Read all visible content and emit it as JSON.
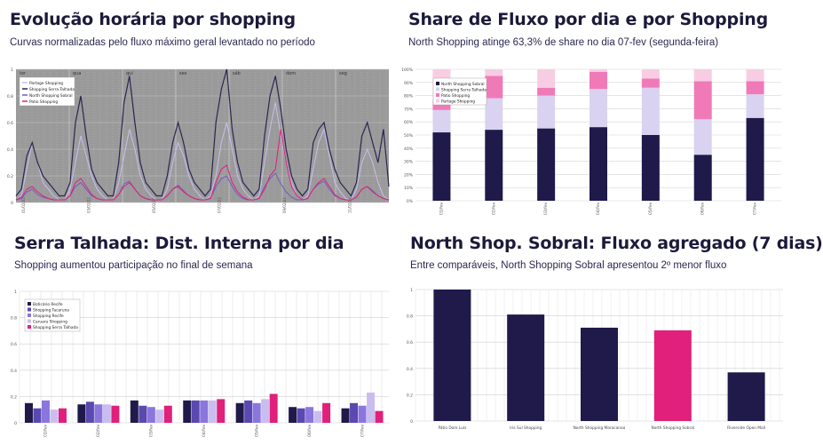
{
  "colors": {
    "navy": "#1f1a4a",
    "lavender": "#d9d2f0",
    "pink": "#f07ab8",
    "lightpink": "#f8cde3",
    "magenta": "#e0207a",
    "purple": "#5a49b0",
    "medpurple": "#8a76dd",
    "periwinkle": "#b9aef0"
  },
  "panels": [
    {
      "title": "Evolução horária por shopping",
      "subtitle": "Curvas normalizadas pelo fluxo máximo geral levantado no período"
    },
    {
      "title": "Share de Fluxo por dia e por Shopping",
      "subtitle": "North Shopping atinge 63,3% de share no dia 07-fev (segunda-feira)"
    },
    {
      "title": "Serra Talhada: Dist. Interna por dia",
      "subtitle": "Shopping aumentou participação no final de semana"
    },
    {
      "title": "North Shop. Sobral: Fluxo agregado (7 dias)",
      "subtitle": "Entre comparáveis, North Shopping Sobral apresentou 2º menor fluxo"
    }
  ],
  "chart_data": [
    {
      "type": "line",
      "title": "Evolução horária por shopping",
      "ylim": [
        0,
        1
      ],
      "yticks": [
        "0",
        "0.2",
        "0.4",
        "0.6",
        "0.8",
        "1"
      ],
      "day_labels": [
        "ter",
        "qua",
        "qui",
        "sex",
        "sáb",
        "dom",
        "seg"
      ],
      "x_ticks": [
        "01/02/22",
        "03/02/22",
        "05/02/22",
        "07/02/22",
        "09/02/22",
        "11/02/22"
      ],
      "legend": [
        "Partage Shopping",
        "Shopping Serra Talhada",
        "North Shopping Sobral",
        "Patio Shopping"
      ],
      "series": [
        {
          "name": "Partage Shopping",
          "color": "#c9bdf0",
          "values": [
            0.02,
            0.05,
            0.25,
            0.45,
            0.3,
            0.15,
            0.1,
            0.05,
            0.02,
            0.02,
            0.1,
            0.3,
            0.5,
            0.35,
            0.2,
            0.1,
            0.05,
            0.02,
            0.02,
            0.15,
            0.35,
            0.55,
            0.4,
            0.2,
            0.1,
            0.05,
            0.02,
            0.02,
            0.1,
            0.3,
            0.45,
            0.35,
            0.2,
            0.1,
            0.05,
            0.02,
            0.05,
            0.2,
            0.45,
            0.6,
            0.4,
            0.2,
            0.1,
            0.05,
            0.02,
            0.05,
            0.3,
            0.55,
            0.75,
            0.5,
            0.3,
            0.15,
            0.05,
            0.02,
            0.05,
            0.25,
            0.45,
            0.55,
            0.35,
            0.15,
            0.08,
            0.03,
            0.02,
            0.1,
            0.3,
            0.4,
            0.3,
            0.15,
            0.05,
            0.02
          ]
        },
        {
          "name": "Shopping Serra Talhada",
          "color": "#2a2650",
          "values": [
            0.05,
            0.1,
            0.35,
            0.45,
            0.3,
            0.2,
            0.15,
            0.1,
            0.05,
            0.05,
            0.15,
            0.6,
            0.8,
            0.5,
            0.25,
            0.15,
            0.1,
            0.05,
            0.05,
            0.3,
            0.75,
            0.95,
            0.6,
            0.3,
            0.15,
            0.1,
            0.05,
            0.05,
            0.2,
            0.45,
            0.6,
            0.45,
            0.25,
            0.15,
            0.1,
            0.05,
            0.1,
            0.6,
            0.85,
            1.0,
            0.55,
            0.3,
            0.15,
            0.1,
            0.05,
            0.1,
            0.5,
            0.8,
            0.95,
            0.7,
            0.4,
            0.2,
            0.1,
            0.05,
            0.1,
            0.45,
            0.55,
            0.6,
            0.4,
            0.25,
            0.15,
            0.1,
            0.05,
            0.15,
            0.5,
            0.6,
            0.45,
            0.3,
            0.55,
            0.12
          ]
        },
        {
          "name": "North Shopping Sobral",
          "color": "#6e5dc4",
          "values": [
            0.02,
            0.03,
            0.08,
            0.1,
            0.06,
            0.04,
            0.03,
            0.02,
            0.02,
            0.02,
            0.05,
            0.12,
            0.15,
            0.1,
            0.05,
            0.03,
            0.02,
            0.02,
            0.02,
            0.06,
            0.14,
            0.16,
            0.1,
            0.05,
            0.03,
            0.02,
            0.02,
            0.02,
            0.05,
            0.1,
            0.13,
            0.09,
            0.05,
            0.03,
            0.02,
            0.02,
            0.03,
            0.12,
            0.18,
            0.2,
            0.12,
            0.06,
            0.03,
            0.02,
            0.02,
            0.03,
            0.12,
            0.18,
            0.22,
            0.14,
            0.08,
            0.04,
            0.02,
            0.02,
            0.03,
            0.1,
            0.14,
            0.16,
            0.1,
            0.05,
            0.03,
            0.02,
            0.02,
            0.04,
            0.1,
            0.12,
            0.09,
            0.05,
            0.03,
            0.02
          ]
        },
        {
          "name": "Patio Shopping",
          "color": "#e0207a",
          "values": [
            0.02,
            0.04,
            0.1,
            0.12,
            0.08,
            0.05,
            0.03,
            0.02,
            0.02,
            0.02,
            0.05,
            0.15,
            0.18,
            0.12,
            0.06,
            0.03,
            0.02,
            0.02,
            0.02,
            0.06,
            0.12,
            0.15,
            0.1,
            0.05,
            0.03,
            0.02,
            0.02,
            0.02,
            0.05,
            0.1,
            0.12,
            0.08,
            0.05,
            0.03,
            0.02,
            0.02,
            0.03,
            0.15,
            0.25,
            0.28,
            0.15,
            0.08,
            0.04,
            0.02,
            0.02,
            0.03,
            0.1,
            0.2,
            0.25,
            0.55,
            0.3,
            0.12,
            0.05,
            0.02,
            0.03,
            0.1,
            0.15,
            0.18,
            0.12,
            0.06,
            0.03,
            0.02,
            0.02,
            0.04,
            0.1,
            0.12,
            0.08,
            0.05,
            0.03,
            0.02
          ]
        }
      ]
    },
    {
      "type": "bar",
      "stacked": true,
      "title": "Share de Fluxo por dia e por Shopping",
      "categories": [
        "01/fev",
        "02/fev",
        "03/fev",
        "04/fev",
        "05/fev",
        "06/fev",
        "07/fev"
      ],
      "yticks": [
        "0%",
        "10%",
        "20%",
        "30%",
        "40%",
        "50%",
        "60%",
        "70%",
        "80%",
        "90%",
        "100%"
      ],
      "ylim": [
        0,
        100
      ],
      "legend": [
        "North Shopping Sobral",
        "Shopping Serra Talhada",
        "Patio Shopping",
        "Partage Shopping"
      ],
      "series": [
        {
          "name": "North Shopping Sobral",
          "color": "#1f1a4a",
          "values": [
            52,
            54,
            55,
            56,
            50,
            35,
            63
          ]
        },
        {
          "name": "Shopping Serra Talhada",
          "color": "#d9d2f0",
          "values": [
            17,
            24,
            25,
            29,
            36,
            27,
            18
          ]
        },
        {
          "name": "Patio Shopping",
          "color": "#f07ab8",
          "values": [
            7,
            17,
            6,
            13,
            7,
            29,
            10
          ]
        },
        {
          "name": "Partage Shopping",
          "color": "#f8cde3",
          "values": [
            24,
            5,
            14,
            2,
            7,
            9,
            9
          ]
        }
      ]
    },
    {
      "type": "bar",
      "title": "Serra Talhada: Dist. Interna por dia",
      "categories": [
        "01/fev",
        "02/fev",
        "03/fev",
        "04/fev",
        "05/fev",
        "06/fev",
        "07/fev"
      ],
      "yticks": [
        "0",
        "0.2",
        "0.4",
        "0.6",
        "0.8",
        "1"
      ],
      "ylim": [
        0,
        1
      ],
      "legend": [
        "Boticário Recife",
        "Shopping Tacaruna",
        "Shopping Recife",
        "Caruaru Shopping",
        "Shopping Serra Talhada"
      ],
      "series": [
        {
          "name": "Boticário Recife",
          "color": "#1f1a4a",
          "values": [
            0.15,
            0.14,
            0.17,
            0.17,
            0.15,
            0.12,
            0.11
          ]
        },
        {
          "name": "Shopping Tacaruna",
          "color": "#5a49b0",
          "values": [
            0.11,
            0.16,
            0.13,
            0.17,
            0.17,
            0.11,
            0.15
          ]
        },
        {
          "name": "Shopping Recife",
          "color": "#8a76dd",
          "values": [
            0.17,
            0.14,
            0.12,
            0.17,
            0.15,
            0.12,
            0.13
          ]
        },
        {
          "name": "Caruaru Shopping",
          "color": "#c9bdf0",
          "values": [
            0.1,
            0.14,
            0.1,
            0.17,
            0.18,
            0.09,
            0.23
          ]
        },
        {
          "name": "Shopping Serra Talhada",
          "color": "#e0207a",
          "values": [
            0.11,
            0.13,
            0.13,
            0.18,
            0.22,
            0.15,
            0.09
          ]
        }
      ]
    },
    {
      "type": "bar",
      "title": "North Shop. Sobral: Fluxo agregado (7 dias)",
      "categories": [
        "Pátio Dom Luís",
        "Iris Sul Shopping",
        "North Shopping Maracanaú",
        "North Shopping Sobral",
        "Riverside Open Mall"
      ],
      "yticks": [
        "0",
        "0.2",
        "0.4",
        "0.6",
        "0.8",
        "1"
      ],
      "ylim": [
        0,
        1
      ],
      "values": [
        1.0,
        0.81,
        0.71,
        0.69,
        0.37
      ],
      "colors": [
        "#1f1a4a",
        "#1f1a4a",
        "#1f1a4a",
        "#e0207a",
        "#1f1a4a"
      ]
    }
  ]
}
